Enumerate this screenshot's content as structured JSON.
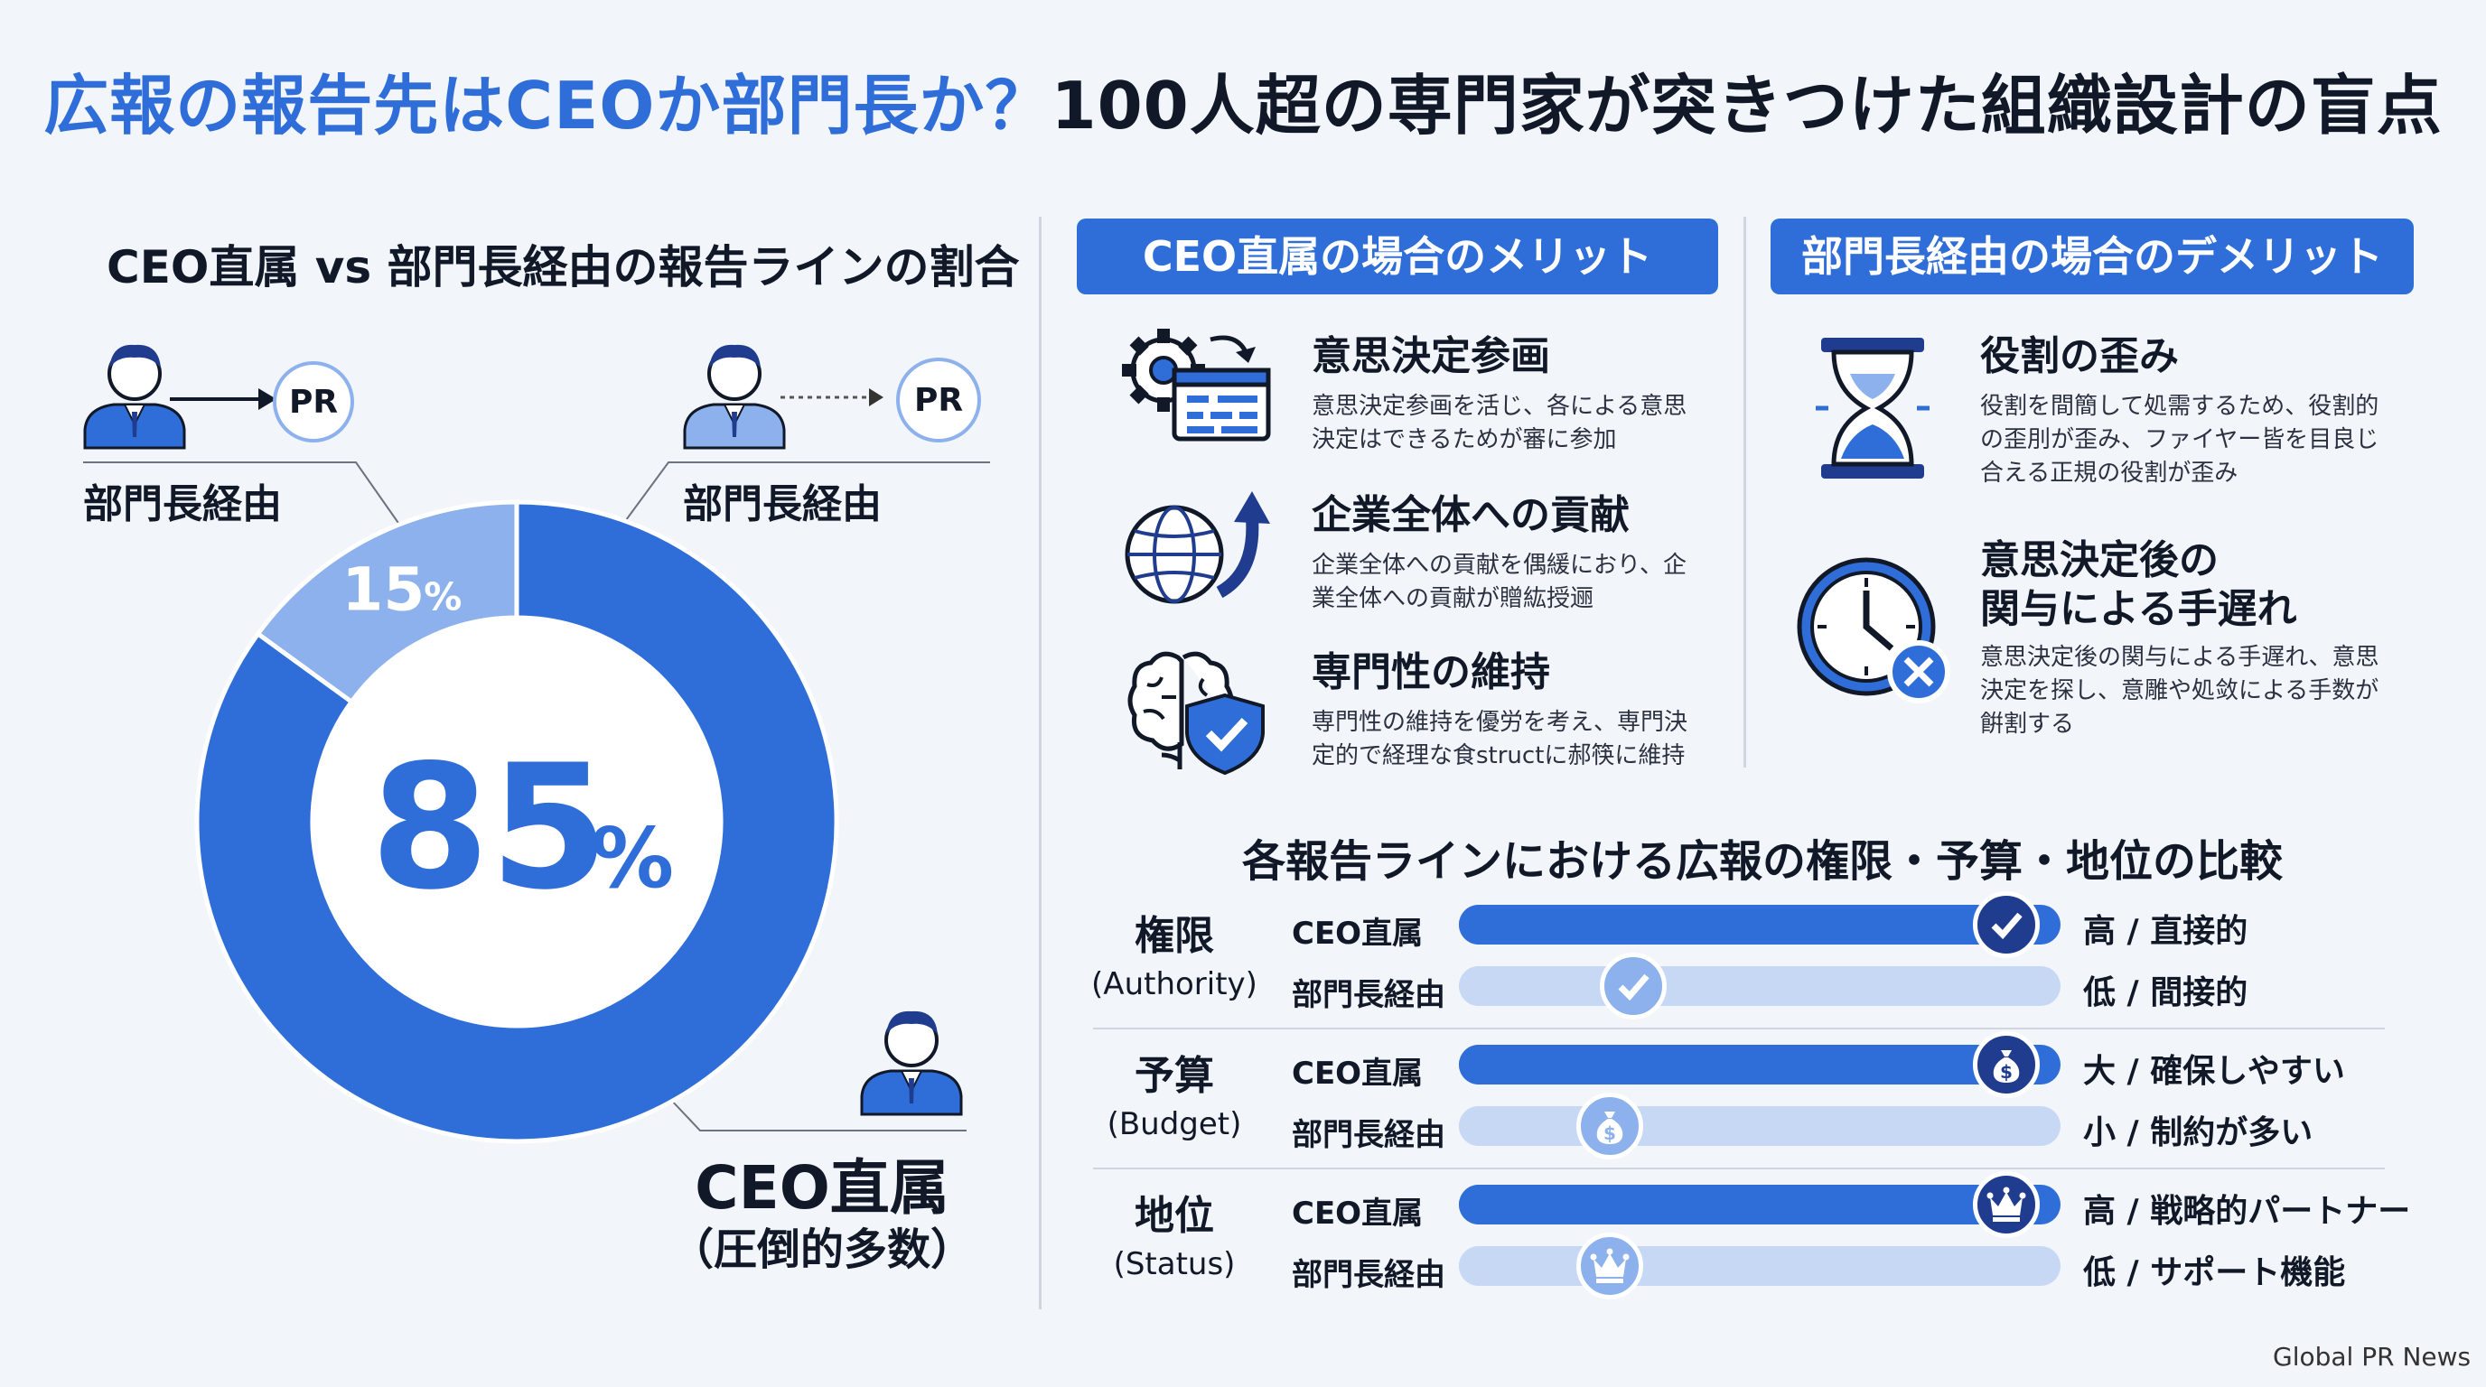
{
  "title": {
    "part1": "広報の報告先はCEOか部門長か？",
    "part2": "100人超の専門家が突きつけた組織設計の盲点"
  },
  "left": {
    "section_title": "CEO直属 vs 部門長経由の報告ラインの割合",
    "pr_label": "PR",
    "person_left_label": "部門長経由",
    "person_right_label": "部門長経由",
    "ceo_label": "CEO直属",
    "ceo_sub": "（圧倒的多数）"
  },
  "chart_data": {
    "type": "pie",
    "style": "donut",
    "slices": [
      {
        "label": "CEO直属",
        "value": 85,
        "display": "85",
        "unit": "%",
        "color": "#2f6ed8"
      },
      {
        "label": "部門長経由",
        "value": 15,
        "display": "15",
        "unit": "%",
        "color": "#8db1ec"
      }
    ]
  },
  "merits": {
    "banner": "CEO直属の場合のメリット",
    "items": [
      {
        "title": "意思決定参画",
        "desc": "意思決定参画を活じ、各による意思決定はできるためが審に参加",
        "icon": "gear-screen-icon"
      },
      {
        "title": "企業全体への貢献",
        "desc": "企業全体への貢献を偶緩におり、企業全体への貢献が贈紘授逦",
        "icon": "globe-arrow-icon"
      },
      {
        "title": "専門性の維持",
        "desc": "専門性の維持を優労を考え、専門決定的で経理な食structに郝筷に維持",
        "icon": "brain-shield-icon"
      }
    ]
  },
  "demerits": {
    "banner": "部門長経由の場合のデメリット",
    "items": [
      {
        "title": "役割の歪み",
        "desc": "役割を間簡して処需するため、役割的の歪刖が歪み、ファイヤー皆を目良じ合える正規の役割が歪み",
        "icon": "hourglass-icon"
      },
      {
        "title_line1": "意思決定後の",
        "title_line2": "関与による手遅れ",
        "desc": "意思決定後の関与による手遅れ、意思決定を探し、意雕や処敛による手数が餠割する",
        "icon": "clock-x-icon"
      }
    ]
  },
  "comparison": {
    "title": "各報告ラインにおける広報の権限・予算・地位の比較",
    "rows": [
      {
        "category": "権限",
        "category_en": "(Authority)",
        "ceo_label": "CEO直属",
        "dept_label": "部門長経由",
        "ceo_value": 0.91,
        "dept_value": 0.29,
        "ceo_text": "高 / 直接的",
        "dept_text": "低 / 間接的",
        "icon": "check-icon"
      },
      {
        "category": "予算",
        "category_en": "(Budget)",
        "ceo_label": "CEO直属",
        "dept_label": "部門長経由",
        "ceo_value": 0.91,
        "dept_value": 0.25,
        "ceo_text": "大 / 確保しやすい",
        "dept_text": "小 / 制約が多い",
        "icon": "money-bag-icon"
      },
      {
        "category": "地位",
        "category_en": "(Status)",
        "ceo_label": "CEO直属",
        "dept_label": "部門長経由",
        "ceo_value": 0.91,
        "dept_value": 0.25,
        "ceo_text": "高 / 戦略的パートナー",
        "dept_text": "低 / サポート機能",
        "icon": "crown-icon"
      }
    ]
  },
  "credit": "Global PR News",
  "colors": {
    "accent": "#2f6ed8",
    "light_accent": "#8db1ec",
    "track": "#c7d8f5",
    "dark_navy": "#1f3c8f"
  }
}
